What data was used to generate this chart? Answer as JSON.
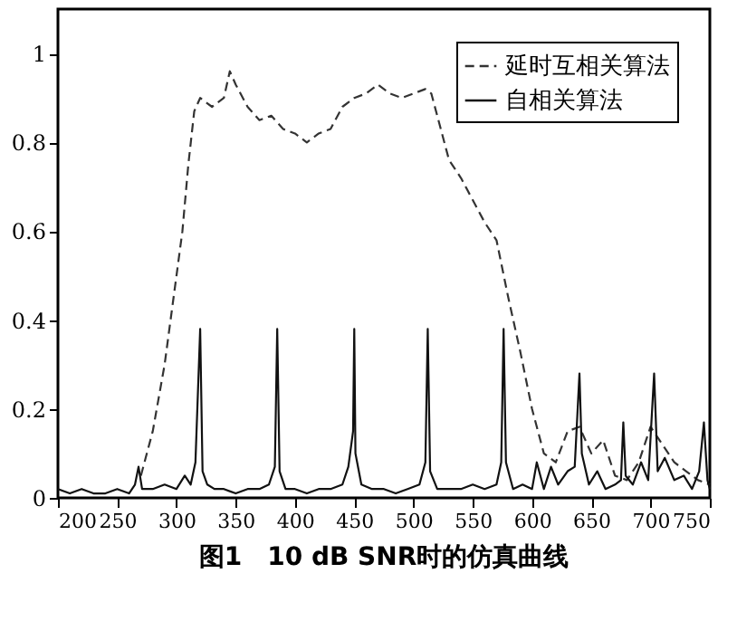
{
  "chart_data": {
    "type": "line",
    "title": "图1　10 dB SNR时的仿真曲线",
    "xlim": [
      200,
      750
    ],
    "xticks": [
      200,
      250,
      300,
      350,
      400,
      450,
      500,
      550,
      600,
      650,
      700,
      750
    ],
    "ylim": [
      0,
      1.1
    ],
    "yticks": [
      0,
      0.2,
      0.4,
      0.6,
      0.8,
      1
    ],
    "grid": false,
    "legend": "top right",
    "marker": "none",
    "series": [
      {
        "name": "延时互相关算法",
        "color": "#333333",
        "line_style": "dashed",
        "x": [
          270,
          280,
          290,
          300,
          305,
          310,
          315,
          320,
          330,
          340,
          345,
          350,
          360,
          370,
          380,
          390,
          400,
          410,
          420,
          430,
          440,
          450,
          460,
          470,
          480,
          490,
          500,
          510,
          515,
          520,
          530,
          540,
          550,
          560,
          570,
          580,
          590,
          600,
          610,
          620,
          630,
          640,
          650,
          660,
          670,
          680,
          690,
          700,
          710,
          720,
          730,
          740,
          750
        ],
        "values": [
          0.05,
          0.15,
          0.3,
          0.5,
          0.6,
          0.75,
          0.87,
          0.9,
          0.88,
          0.9,
          0.96,
          0.93,
          0.88,
          0.85,
          0.86,
          0.83,
          0.82,
          0.8,
          0.82,
          0.83,
          0.88,
          0.9,
          0.91,
          0.93,
          0.91,
          0.9,
          0.91,
          0.92,
          0.91,
          0.86,
          0.76,
          0.72,
          0.67,
          0.62,
          0.58,
          0.45,
          0.33,
          0.2,
          0.1,
          0.08,
          0.15,
          0.16,
          0.1,
          0.13,
          0.05,
          0.04,
          0.08,
          0.16,
          0.12,
          0.08,
          0.06,
          0.04,
          0.03
        ]
      },
      {
        "name": "自相关算法",
        "color": "#111111",
        "line_style": "solid",
        "x": [
          200,
          210,
          220,
          230,
          240,
          250,
          260,
          265,
          268,
          271,
          280,
          290,
          300,
          307,
          312,
          316,
          320,
          322,
          326,
          332,
          340,
          350,
          360,
          370,
          378,
          383,
          385,
          387,
          392,
          400,
          410,
          420,
          430,
          440,
          445,
          449,
          450,
          451,
          456,
          465,
          475,
          485,
          495,
          505,
          510,
          512,
          514,
          520,
          530,
          540,
          550,
          560,
          570,
          574,
          576,
          578,
          584,
          592,
          600,
          604,
          610,
          616,
          622,
          630,
          636,
          640,
          642,
          648,
          655,
          662,
          670,
          675,
          677,
          679,
          685,
          692,
          698,
          703,
          706,
          712,
          720,
          728,
          735,
          741,
          745,
          748,
          750
        ],
        "values": [
          0.02,
          0.01,
          0.02,
          0.01,
          0.01,
          0.02,
          0.01,
          0.03,
          0.07,
          0.02,
          0.02,
          0.03,
          0.02,
          0.05,
          0.03,
          0.08,
          0.38,
          0.06,
          0.03,
          0.02,
          0.02,
          0.01,
          0.02,
          0.02,
          0.03,
          0.07,
          0.38,
          0.06,
          0.02,
          0.02,
          0.01,
          0.02,
          0.02,
          0.03,
          0.07,
          0.15,
          0.38,
          0.1,
          0.03,
          0.02,
          0.02,
          0.01,
          0.02,
          0.03,
          0.08,
          0.38,
          0.06,
          0.02,
          0.02,
          0.02,
          0.03,
          0.02,
          0.03,
          0.08,
          0.38,
          0.08,
          0.02,
          0.03,
          0.02,
          0.08,
          0.02,
          0.07,
          0.03,
          0.06,
          0.07,
          0.28,
          0.1,
          0.03,
          0.06,
          0.02,
          0.03,
          0.04,
          0.17,
          0.05,
          0.03,
          0.08,
          0.04,
          0.28,
          0.06,
          0.09,
          0.04,
          0.05,
          0.02,
          0.06,
          0.17,
          0.04,
          0.02
        ]
      }
    ]
  }
}
